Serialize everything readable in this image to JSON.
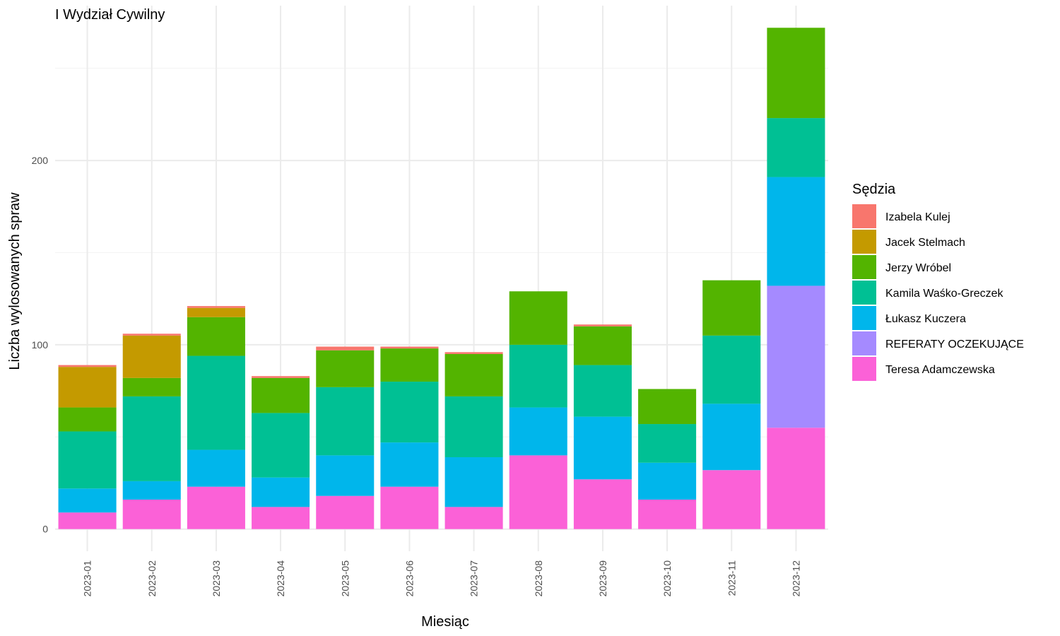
{
  "chart_data": {
    "type": "bar",
    "stacked": true,
    "title": "I Wydział Cywilny",
    "xlabel": "Miesiąc",
    "ylabel": "Liczba wylosowanych spraw",
    "ylim": [
      -12,
      284
    ],
    "yticks": [
      0,
      100,
      200
    ],
    "grid": true,
    "legend_title": "Sędzia",
    "legend_position": "right",
    "categories": [
      "2023-01",
      "2023-02",
      "2023-03",
      "2023-04",
      "2023-05",
      "2023-06",
      "2023-07",
      "2023-08",
      "2023-09",
      "2023-10",
      "2023-11",
      "2023-12"
    ],
    "series": [
      {
        "name": "Teresa Adamczewska",
        "color": "#FB61D7",
        "values": [
          9,
          16,
          23,
          12,
          18,
          23,
          12,
          40,
          27,
          16,
          32,
          55
        ]
      },
      {
        "name": "REFERATY OCZEKUJĄCE",
        "color": "#A58AFF",
        "values": [
          0,
          0,
          0,
          0,
          0,
          0,
          0,
          0,
          0,
          0,
          0,
          77
        ]
      },
      {
        "name": "Łukasz Kuczera",
        "color": "#00B6EB",
        "values": [
          13,
          10,
          20,
          16,
          22,
          24,
          27,
          26,
          34,
          20,
          36,
          59
        ]
      },
      {
        "name": "Kamila Waśko-Greczek",
        "color": "#00C094",
        "values": [
          31,
          46,
          51,
          35,
          37,
          33,
          33,
          34,
          28,
          21,
          37,
          32
        ]
      },
      {
        "name": "Jerzy Wróbel",
        "color": "#53B400",
        "values": [
          13,
          10,
          21,
          19,
          20,
          18,
          23,
          29,
          21,
          19,
          30,
          49
        ]
      },
      {
        "name": "Jacek Stelmach",
        "color": "#C49A00",
        "values": [
          22,
          23,
          5,
          0,
          0,
          0,
          0,
          0,
          0,
          0,
          0,
          0
        ]
      },
      {
        "name": "Izabela Kulej",
        "color": "#F8766D",
        "values": [
          1,
          1,
          1,
          1,
          2,
          1,
          1,
          0,
          1,
          0,
          0,
          0
        ]
      }
    ],
    "legend_order": [
      "Izabela Kulej",
      "Jacek Stelmach",
      "Jerzy Wróbel",
      "Kamila Waśko-Greczek",
      "Łukasz Kuczera",
      "REFERATY OCZEKUJĄCE",
      "Teresa Adamczewska"
    ]
  }
}
